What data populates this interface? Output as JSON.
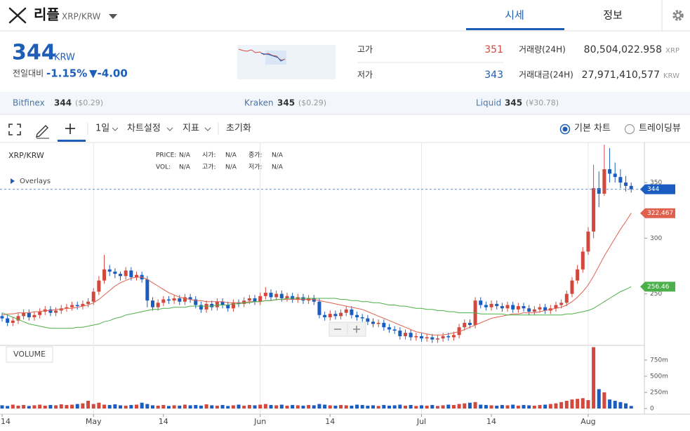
{
  "header": {
    "coin": "리플",
    "pair": "XRP/KRW",
    "tabs": [
      "시세",
      "정보"
    ]
  },
  "price": {
    "value": "344",
    "unit": "KRW",
    "change_label": "전일대비",
    "change_pct": "-1.15%",
    "change_abs": "▼-4.00"
  },
  "stats": [
    {
      "label": "고가",
      "value": "351"
    },
    {
      "label": "저가",
      "value": "343"
    },
    {
      "label": "거래량(24H)",
      "value": "80,504,022.958",
      "unit": "XRP"
    },
    {
      "label": "거래대금(24H)",
      "value": "27,971,410,577",
      "unit": "KRW"
    }
  ],
  "exchanges": [
    {
      "name": "Bitfinex",
      "price": "344",
      "note": "($0.29)"
    },
    {
      "name": "Kraken",
      "price": "345",
      "note": "($0.29)"
    },
    {
      "name": "Liquid",
      "price": "345",
      "note": "(¥30.78)"
    }
  ],
  "toolbar": {
    "interval": "1일",
    "items": [
      "차트설정",
      "지표",
      "초기화"
    ],
    "radios": [
      "기본 차트",
      "트레이딩뷰"
    ]
  },
  "chart_data": {
    "type": "candlestick",
    "title": "XRP/KRW",
    "info_fields": [
      {
        "label": "PRICE:",
        "value": "N/A"
      },
      {
        "label": "시가:",
        "value": "N/A"
      },
      {
        "label": "종가:",
        "value": "N/A"
      },
      {
        "label": "VOL:",
        "value": "N/A"
      },
      {
        "label": "고가:",
        "value": "N/A"
      },
      {
        "label": "저가:",
        "value": "N/A"
      }
    ],
    "overlays_label": "Overlays",
    "volume_label": "VOLUME",
    "up_color": "#d2483d",
    "down_color": "#1b5cc0",
    "categories": [
      "14",
      null,
      null,
      null,
      null,
      null,
      null,
      null,
      null,
      null,
      null,
      null,
      null,
      null,
      null,
      null,
      null,
      "May",
      null,
      null,
      null,
      null,
      null,
      null,
      null,
      null,
      null,
      null,
      null,
      null,
      "14",
      null,
      null,
      null,
      null,
      null,
      null,
      null,
      null,
      null,
      null,
      null,
      null,
      null,
      null,
      null,
      null,
      null,
      "Jun",
      null,
      null,
      null,
      null,
      null,
      null,
      null,
      null,
      null,
      null,
      null,
      null,
      "14",
      null,
      null,
      null,
      null,
      null,
      null,
      null,
      null,
      null,
      null,
      null,
      null,
      null,
      null,
      null,
      null,
      "Jul",
      null,
      null,
      null,
      null,
      null,
      null,
      null,
      null,
      null,
      null,
      null,
      null,
      "14",
      null,
      null,
      null,
      null,
      null,
      null,
      null,
      null,
      null,
      null,
      null,
      null,
      null,
      null,
      null,
      null,
      null,
      "Aug",
      null,
      null,
      null,
      null,
      null,
      null,
      null,
      null
    ],
    "open": [
      230,
      228,
      224,
      226,
      230,
      233,
      229,
      231,
      234,
      236,
      233,
      235,
      237,
      238,
      240,
      239,
      241,
      243,
      252,
      262,
      272,
      270,
      268,
      266,
      271,
      265,
      267,
      263,
      244,
      238,
      242,
      245,
      244,
      246,
      243,
      247,
      245,
      240,
      236,
      241,
      238,
      243,
      240,
      237,
      242,
      241,
      244,
      246,
      243,
      248,
      251,
      247,
      250,
      246,
      248,
      245,
      247,
      244,
      246,
      243,
      231,
      229,
      232,
      230,
      233,
      236,
      231,
      229,
      228,
      225,
      223,
      224,
      220,
      218,
      217,
      212,
      215,
      211,
      212,
      210,
      211,
      209,
      210,
      212,
      211,
      213,
      220,
      224,
      222,
      244,
      240,
      238,
      241,
      239,
      237,
      240,
      236,
      239,
      237,
      234,
      236,
      238,
      235,
      237,
      240,
      242,
      250,
      262,
      272,
      288,
      306,
      345,
      340,
      362,
      358,
      355,
      350,
      347
    ],
    "high": [
      233,
      231,
      229,
      233,
      236,
      236,
      234,
      237,
      239,
      239,
      238,
      240,
      241,
      243,
      243,
      244,
      246,
      255,
      266,
      285,
      276,
      273,
      270,
      274,
      274,
      270,
      270,
      266,
      247,
      245,
      248,
      248,
      249,
      249,
      250,
      250,
      248,
      243,
      244,
      244,
      246,
      246,
      243,
      245,
      245,
      247,
      249,
      249,
      251,
      256,
      254,
      253,
      253,
      251,
      251,
      250,
      250,
      249,
      249,
      246,
      234,
      235,
      235,
      236,
      239,
      239,
      234,
      232,
      231,
      228,
      227,
      227,
      223,
      221,
      220,
      218,
      218,
      215,
      215,
      214,
      214,
      213,
      215,
      215,
      216,
      223,
      227,
      227,
      247,
      247,
      243,
      244,
      244,
      242,
      243,
      243,
      242,
      242,
      240,
      239,
      241,
      241,
      240,
      243,
      245,
      253,
      265,
      276,
      292,
      310,
      366,
      360,
      384,
      381,
      368,
      362,
      356,
      350
    ],
    "low": [
      225,
      221,
      221,
      223,
      227,
      226,
      226,
      228,
      231,
      230,
      230,
      232,
      234,
      235,
      236,
      236,
      238,
      240,
      249,
      259,
      266,
      264,
      262,
      263,
      262,
      262,
      260,
      238,
      235,
      235,
      239,
      241,
      241,
      240,
      240,
      242,
      237,
      233,
      233,
      235,
      235,
      237,
      234,
      234,
      238,
      238,
      241,
      240,
      240,
      245,
      244,
      244,
      243,
      243,
      242,
      242,
      241,
      241,
      240,
      228,
      226,
      226,
      227,
      227,
      230,
      228,
      226,
      225,
      222,
      220,
      220,
      217,
      215,
      214,
      209,
      209,
      208,
      208,
      207,
      207,
      206,
      206,
      207,
      208,
      208,
      210,
      217,
      219,
      219,
      237,
      235,
      235,
      236,
      234,
      234,
      233,
      233,
      234,
      231,
      231,
      233,
      232,
      232,
      234,
      237,
      239,
      247,
      259,
      269,
      285,
      300,
      328,
      338,
      350,
      350,
      345,
      342,
      341
    ],
    "close": [
      228,
      224,
      226,
      230,
      233,
      229,
      231,
      234,
      236,
      233,
      235,
      237,
      238,
      240,
      239,
      241,
      243,
      252,
      262,
      272,
      270,
      268,
      266,
      271,
      265,
      267,
      263,
      244,
      238,
      242,
      245,
      244,
      246,
      243,
      247,
      245,
      240,
      236,
      241,
      238,
      243,
      240,
      237,
      242,
      241,
      244,
      246,
      243,
      248,
      251,
      247,
      250,
      246,
      248,
      245,
      247,
      244,
      246,
      243,
      231,
      229,
      232,
      230,
      233,
      236,
      231,
      229,
      228,
      225,
      223,
      224,
      220,
      218,
      217,
      212,
      215,
      211,
      212,
      210,
      211,
      209,
      210,
      212,
      211,
      213,
      220,
      224,
      222,
      244,
      240,
      238,
      241,
      239,
      237,
      240,
      236,
      239,
      237,
      234,
      236,
      238,
      235,
      237,
      240,
      242,
      250,
      262,
      272,
      288,
      306,
      345,
      340,
      362,
      358,
      355,
      350,
      347,
      344
    ],
    "volume": [
      50,
      40,
      60,
      45,
      55,
      40,
      50,
      60,
      45,
      55,
      50,
      65,
      55,
      60,
      70,
      80,
      120,
      70,
      90,
      60,
      55,
      65,
      50,
      45,
      55,
      60,
      90,
      70,
      50,
      45,
      55,
      40,
      50,
      45,
      60,
      50,
      55,
      45,
      65,
      50,
      45,
      55,
      40,
      50,
      60,
      45,
      55,
      50,
      60,
      70,
      55,
      50,
      60,
      45,
      55,
      50,
      45,
      55,
      50,
      70,
      60,
      50,
      45,
      55,
      50,
      45,
      60,
      55,
      45,
      50,
      40,
      55,
      45,
      50,
      60,
      45,
      55,
      40,
      50,
      45,
      55,
      40,
      50,
      60,
      55,
      70,
      80,
      90,
      100,
      60,
      55,
      50,
      45,
      55,
      50,
      60,
      45,
      55,
      50,
      45,
      55,
      60,
      70,
      80,
      100,
      120,
      140,
      150,
      160,
      130,
      950,
      300,
      250,
      140,
      120,
      100,
      80,
      40
    ],
    "series": [
      {
        "color": "#e0604e",
        "values": [
          231,
          232,
          232,
          233,
          233,
          233,
          234,
          234,
          235,
          235,
          236,
          236,
          237,
          237,
          238,
          239,
          240,
          242,
          245,
          249,
          253,
          257,
          260,
          262,
          264,
          265,
          265,
          263,
          260,
          257,
          254,
          251,
          249,
          247,
          246,
          245,
          244,
          244,
          243,
          243,
          243,
          243,
          242,
          242,
          242,
          242,
          243,
          243,
          243,
          244,
          244,
          245,
          245,
          245,
          245,
          245,
          245,
          245,
          245,
          244,
          243,
          242,
          241,
          240,
          239,
          238,
          237,
          236,
          234,
          232,
          230,
          228,
          226,
          224,
          222,
          220,
          218,
          216,
          215,
          214,
          213,
          213,
          213,
          214,
          215,
          216,
          218,
          220,
          222,
          224,
          226,
          228,
          229,
          230,
          231,
          232,
          232,
          233,
          233,
          233,
          234,
          235,
          236,
          237,
          238,
          240,
          243,
          247,
          252,
          258,
          266,
          275,
          284,
          292,
          300,
          308,
          315,
          322.467
        ]
      },
      {
        "color": "#4cb04a",
        "values": [
          233,
          231,
          229,
          227,
          225,
          223,
          222,
          221,
          220,
          219,
          219,
          219,
          219,
          219,
          220,
          220,
          221,
          222,
          223,
          225,
          226,
          228,
          229,
          231,
          232,
          233,
          234,
          235,
          236,
          236,
          237,
          237,
          238,
          238,
          238,
          239,
          239,
          239,
          239,
          239,
          240,
          240,
          240,
          241,
          241,
          242,
          242,
          243,
          243,
          244,
          244,
          245,
          245,
          246,
          246,
          246,
          246,
          246,
          246,
          246,
          246,
          246,
          246,
          245,
          245,
          244,
          244,
          243,
          243,
          242,
          242,
          241,
          240,
          240,
          239,
          239,
          238,
          237,
          237,
          236,
          236,
          235,
          235,
          234,
          234,
          233,
          233,
          233,
          233,
          232,
          232,
          232,
          232,
          232,
          231,
          231,
          231,
          231,
          231,
          231,
          231,
          231,
          231,
          231,
          231,
          232,
          232,
          233,
          234,
          235,
          237,
          240,
          243,
          246,
          249,
          252,
          254,
          256.46
        ]
      }
    ],
    "ylim": [
      205,
      386
    ],
    "yticks": [
      250,
      300,
      350
    ],
    "volume_ylim": [
      0,
      978
    ],
    "volume_yticks": [
      0,
      {
        "value": 250,
        "label": "250m"
      },
      {
        "value": 500,
        "label": "500m"
      },
      {
        "value": 750,
        "label": "750m"
      }
    ]
  }
}
